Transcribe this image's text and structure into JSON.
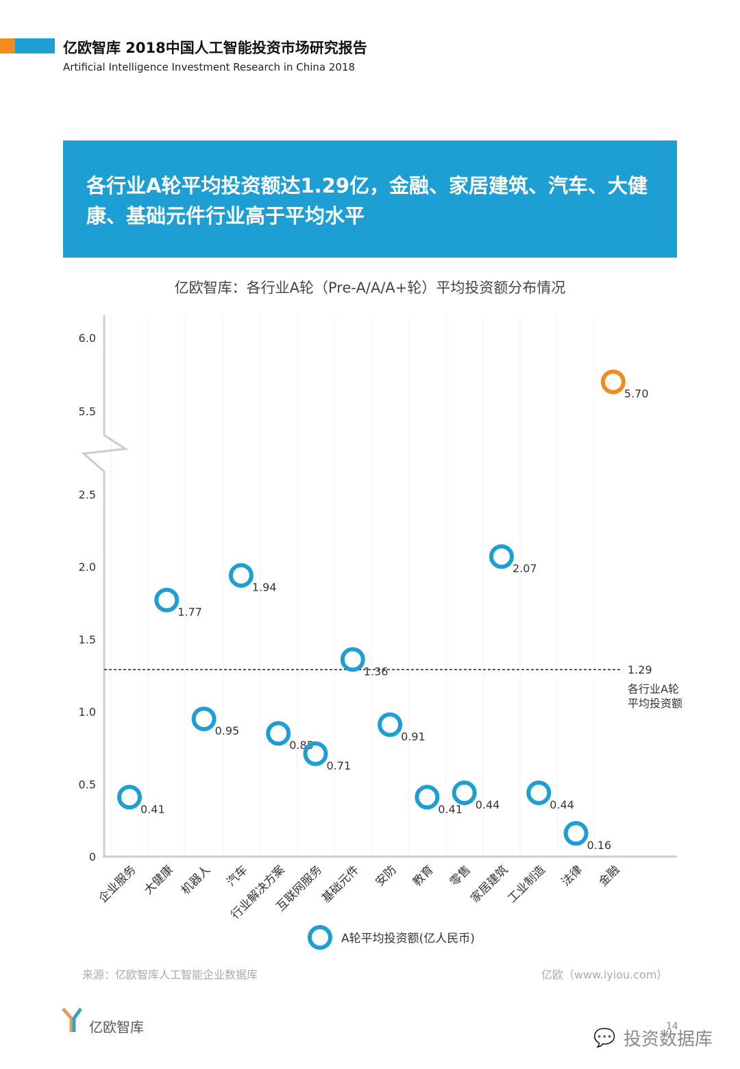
{
  "header": {
    "title_cn": "亿欧智库 2018中国人工智能投资市场研究报告",
    "title_en": "Artificial Intelligence Investment Research in China 2018"
  },
  "banner": {
    "text": "各行业A轮平均投资额达1.29亿，金融、家居建筑、汽车、大健康、基础元件行业高于平均水平"
  },
  "chart_data": {
    "type": "scatter",
    "title": "亿欧智库：各行业A轮（Pre-A/A/A+轮）平均投资额分布情况",
    "categories": [
      "企业服务",
      "大健康",
      "机器人",
      "汽车",
      "行业解决方案",
      "互联网服务",
      "基础元件",
      "安防",
      "教育",
      "零售",
      "家居建筑",
      "工业制造",
      "法律",
      "金融"
    ],
    "series": [
      {
        "name": "A轮平均投资额(亿人民币)",
        "values": [
          0.41,
          1.77,
          0.95,
          1.94,
          0.85,
          0.71,
          1.36,
          0.91,
          0.41,
          0.44,
          2.07,
          0.44,
          0.16,
          5.7
        ],
        "color": "#1e9fd4",
        "highlight_color": "#f28c1e"
      }
    ],
    "value_labels": [
      "0.41",
      "1.77",
      "0.95",
      "1.94",
      "0.85",
      "0.71",
      "1.36",
      "0.91",
      "0.41",
      "0.44",
      "2.07",
      "0.44",
      "0.16",
      "5.70"
    ],
    "yticks_lower": [
      "0",
      "0.5",
      "1.0",
      "1.5",
      "2.0",
      "2.5"
    ],
    "yticks_upper": [
      "5.5",
      "6.0"
    ],
    "y_axis_break": [
      2.5,
      5.5
    ],
    "ylim": [
      0,
      6.0
    ],
    "reference_line": {
      "value": 1.29,
      "label_value": "1.29",
      "label": "各行业A轮平均投资额",
      "label_line1": "各行业A轮",
      "label_line2": "平均投资额"
    },
    "legend_position": "bottom"
  },
  "footer": {
    "source": "来源：亿欧智库人工智能企业数据库",
    "site": "亿欧（www.iyiou.com）",
    "logo_text": "亿欧智库",
    "page": "14",
    "watermark": "投资数据库"
  }
}
